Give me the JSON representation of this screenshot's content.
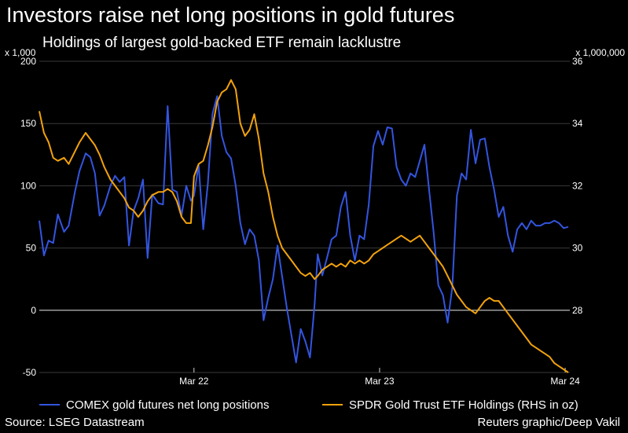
{
  "title": "Investors raise net long positions in gold futures",
  "subtitle": "Holdings of largest gold-backed ETF remain lacklustre",
  "source": "Source: LSEG Datastream",
  "credit": "Reuters graphic/Deep Vakil",
  "colors": {
    "background": "#000000",
    "comex": "#3355e0",
    "spdr": "#f2a20c",
    "grid": "#3a3a3a",
    "zero_line": "#cfcfcf"
  },
  "chart_data": {
    "type": "line",
    "x_ticks": [
      "Mar 22",
      "Mar 23",
      "Mar 24"
    ],
    "x_tick_positions": [
      19.0,
      31.0,
      43.0
    ],
    "x_range": [
      9.0,
      43.3
    ],
    "y_left": {
      "unit": "x 1,000",
      "range": [
        -50,
        200
      ],
      "ticks": [
        -50,
        0,
        50,
        100,
        150,
        200
      ]
    },
    "y_right": {
      "unit": "x 1,000,000",
      "range": [
        26,
        36
      ],
      "ticks": [
        28,
        30,
        32,
        34,
        36
      ]
    },
    "grid": "horizontal",
    "legend_position": "bottom",
    "series": [
      {
        "name": "COMEX gold futures net long positions",
        "axis": "left",
        "color": "#3355e0",
        "points": [
          [
            9.0,
            72
          ],
          [
            9.3,
            44
          ],
          [
            9.6,
            56
          ],
          [
            9.9,
            54
          ],
          [
            10.2,
            77
          ],
          [
            10.6,
            63
          ],
          [
            10.9,
            68
          ],
          [
            11.3,
            95
          ],
          [
            11.6,
            112
          ],
          [
            12.0,
            126
          ],
          [
            12.3,
            123
          ],
          [
            12.6,
            110
          ],
          [
            12.9,
            76
          ],
          [
            13.2,
            84
          ],
          [
            13.6,
            100
          ],
          [
            13.9,
            108
          ],
          [
            14.2,
            103
          ],
          [
            14.5,
            107
          ],
          [
            14.8,
            52
          ],
          [
            15.1,
            80
          ],
          [
            15.4,
            90
          ],
          [
            15.7,
            105
          ],
          [
            16.0,
            42
          ],
          [
            16.3,
            93
          ],
          [
            16.7,
            86
          ],
          [
            17.0,
            85
          ],
          [
            17.3,
            164
          ],
          [
            17.6,
            97
          ],
          [
            17.9,
            95
          ],
          [
            18.2,
            76
          ],
          [
            18.5,
            100
          ],
          [
            18.8,
            88
          ],
          [
            19.0,
            92
          ],
          [
            19.3,
            117
          ],
          [
            19.6,
            65
          ],
          [
            19.9,
            102
          ],
          [
            20.2,
            158
          ],
          [
            20.5,
            172
          ],
          [
            20.8,
            140
          ],
          [
            21.1,
            127
          ],
          [
            21.4,
            122
          ],
          [
            21.7,
            100
          ],
          [
            22.0,
            70
          ],
          [
            22.3,
            53
          ],
          [
            22.6,
            65
          ],
          [
            22.9,
            60
          ],
          [
            23.2,
            40
          ],
          [
            23.5,
            -8
          ],
          [
            23.8,
            10
          ],
          [
            24.1,
            25
          ],
          [
            24.4,
            52
          ],
          [
            24.7,
            27
          ],
          [
            25.0,
            2
          ],
          [
            25.3,
            -20
          ],
          [
            25.6,
            -42
          ],
          [
            25.9,
            -15
          ],
          [
            26.2,
            -25
          ],
          [
            26.5,
            -38
          ],
          [
            26.8,
            5
          ],
          [
            27.0,
            45
          ],
          [
            27.3,
            28
          ],
          [
            27.6,
            42
          ],
          [
            27.9,
            57
          ],
          [
            28.2,
            60
          ],
          [
            28.5,
            83
          ],
          [
            28.8,
            95
          ],
          [
            29.1,
            60
          ],
          [
            29.4,
            40
          ],
          [
            29.7,
            60
          ],
          [
            30.0,
            57
          ],
          [
            30.3,
            85
          ],
          [
            30.6,
            132
          ],
          [
            30.9,
            144
          ],
          [
            31.2,
            133
          ],
          [
            31.5,
            147
          ],
          [
            31.8,
            146
          ],
          [
            32.1,
            115
          ],
          [
            32.4,
            105
          ],
          [
            32.7,
            100
          ],
          [
            33.0,
            110
          ],
          [
            33.3,
            107
          ],
          [
            33.6,
            120
          ],
          [
            33.9,
            133
          ],
          [
            34.2,
            97
          ],
          [
            34.5,
            62
          ],
          [
            34.8,
            20
          ],
          [
            35.1,
            12
          ],
          [
            35.4,
            -10
          ],
          [
            35.7,
            18
          ],
          [
            36.0,
            92
          ],
          [
            36.3,
            110
          ],
          [
            36.6,
            105
          ],
          [
            36.9,
            145
          ],
          [
            37.2,
            118
          ],
          [
            37.5,
            137
          ],
          [
            37.8,
            138
          ],
          [
            38.1,
            115
          ],
          [
            38.4,
            97
          ],
          [
            38.7,
            75
          ],
          [
            39.0,
            83
          ],
          [
            39.3,
            60
          ],
          [
            39.6,
            47
          ],
          [
            39.9,
            65
          ],
          [
            40.2,
            70
          ],
          [
            40.5,
            65
          ],
          [
            40.8,
            72
          ],
          [
            41.1,
            68
          ],
          [
            41.4,
            68
          ],
          [
            41.7,
            70
          ],
          [
            42.0,
            70
          ],
          [
            42.3,
            72
          ],
          [
            42.6,
            70
          ],
          [
            42.9,
            66
          ],
          [
            43.2,
            67
          ]
        ]
      },
      {
        "name": "SPDR Gold Trust ETF Holdings (RHS in oz)",
        "axis": "right",
        "color": "#f2a20c",
        "points": [
          [
            9.0,
            34.4
          ],
          [
            9.3,
            33.7
          ],
          [
            9.6,
            33.4
          ],
          [
            9.9,
            32.9
          ],
          [
            10.2,
            32.8
          ],
          [
            10.6,
            32.9
          ],
          [
            10.9,
            32.7
          ],
          [
            11.3,
            33.1
          ],
          [
            11.6,
            33.4
          ],
          [
            12.0,
            33.7
          ],
          [
            12.3,
            33.5
          ],
          [
            12.6,
            33.3
          ],
          [
            12.9,
            33.0
          ],
          [
            13.2,
            32.6
          ],
          [
            13.6,
            32.2
          ],
          [
            13.9,
            32.0
          ],
          [
            14.2,
            31.8
          ],
          [
            14.5,
            31.6
          ],
          [
            14.8,
            31.3
          ],
          [
            15.1,
            31.2
          ],
          [
            15.4,
            31.0
          ],
          [
            15.7,
            31.2
          ],
          [
            16.0,
            31.5
          ],
          [
            16.3,
            31.7
          ],
          [
            16.7,
            31.8
          ],
          [
            17.0,
            31.8
          ],
          [
            17.3,
            31.9
          ],
          [
            17.6,
            31.8
          ],
          [
            17.9,
            31.5
          ],
          [
            18.2,
            31.0
          ],
          [
            18.5,
            30.8
          ],
          [
            18.8,
            30.8
          ],
          [
            19.0,
            32.3
          ],
          [
            19.3,
            32.7
          ],
          [
            19.6,
            32.8
          ],
          [
            19.9,
            33.3
          ],
          [
            20.2,
            33.9
          ],
          [
            20.5,
            34.7
          ],
          [
            20.8,
            35.0
          ],
          [
            21.1,
            35.1
          ],
          [
            21.4,
            35.4
          ],
          [
            21.7,
            35.1
          ],
          [
            22.0,
            34.0
          ],
          [
            22.3,
            33.6
          ],
          [
            22.6,
            33.8
          ],
          [
            22.9,
            34.3
          ],
          [
            23.2,
            33.5
          ],
          [
            23.5,
            32.4
          ],
          [
            23.8,
            31.8
          ],
          [
            24.1,
            31.0
          ],
          [
            24.4,
            30.4
          ],
          [
            24.7,
            30.0
          ],
          [
            25.0,
            29.8
          ],
          [
            25.3,
            29.6
          ],
          [
            25.6,
            29.4
          ],
          [
            25.9,
            29.2
          ],
          [
            26.2,
            29.1
          ],
          [
            26.5,
            29.2
          ],
          [
            26.8,
            29.0
          ],
          [
            27.0,
            29.1
          ],
          [
            27.3,
            29.3
          ],
          [
            27.6,
            29.4
          ],
          [
            27.9,
            29.5
          ],
          [
            28.2,
            29.4
          ],
          [
            28.5,
            29.5
          ],
          [
            28.8,
            29.4
          ],
          [
            29.1,
            29.6
          ],
          [
            29.4,
            29.5
          ],
          [
            29.7,
            29.6
          ],
          [
            30.0,
            29.5
          ],
          [
            30.3,
            29.6
          ],
          [
            30.6,
            29.8
          ],
          [
            30.9,
            29.9
          ],
          [
            31.2,
            30.0
          ],
          [
            31.5,
            30.1
          ],
          [
            31.8,
            30.2
          ],
          [
            32.1,
            30.3
          ],
          [
            32.4,
            30.4
          ],
          [
            32.7,
            30.3
          ],
          [
            33.0,
            30.2
          ],
          [
            33.3,
            30.3
          ],
          [
            33.6,
            30.4
          ],
          [
            33.9,
            30.2
          ],
          [
            34.2,
            30.0
          ],
          [
            34.5,
            29.8
          ],
          [
            34.8,
            29.6
          ],
          [
            35.1,
            29.4
          ],
          [
            35.4,
            29.1
          ],
          [
            35.7,
            28.8
          ],
          [
            36.0,
            28.5
          ],
          [
            36.3,
            28.3
          ],
          [
            36.6,
            28.1
          ],
          [
            36.9,
            28.0
          ],
          [
            37.2,
            27.9
          ],
          [
            37.5,
            28.1
          ],
          [
            37.8,
            28.3
          ],
          [
            38.1,
            28.4
          ],
          [
            38.4,
            28.3
          ],
          [
            38.7,
            28.3
          ],
          [
            39.0,
            28.1
          ],
          [
            39.3,
            27.9
          ],
          [
            39.6,
            27.7
          ],
          [
            39.9,
            27.5
          ],
          [
            40.2,
            27.3
          ],
          [
            40.5,
            27.1
          ],
          [
            40.8,
            26.9
          ],
          [
            41.1,
            26.8
          ],
          [
            41.4,
            26.7
          ],
          [
            41.7,
            26.6
          ],
          [
            42.0,
            26.5
          ],
          [
            42.3,
            26.3
          ],
          [
            42.6,
            26.2
          ],
          [
            42.9,
            26.1
          ],
          [
            43.2,
            26.0
          ]
        ]
      }
    ]
  }
}
